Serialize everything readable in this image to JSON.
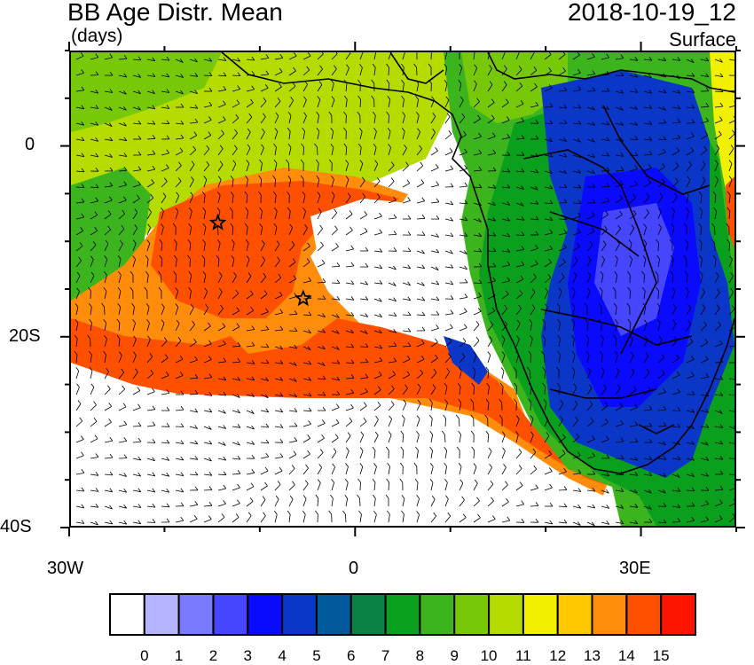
{
  "header": {
    "title": "BB Age Distr. Mean",
    "units": "(days)",
    "datetime": "2018-10-19_12",
    "level": "Surface"
  },
  "axes": {
    "y_labels": [
      "0",
      "20S",
      "40S"
    ],
    "x_labels": [
      "30W",
      "0",
      "30E"
    ]
  },
  "map": {
    "lon_range": [
      -30,
      40
    ],
    "lat_range": [
      -40,
      10
    ],
    "markers": [
      {
        "name": "star-1",
        "lon": -14.5,
        "lat": -8
      },
      {
        "name": "star-2",
        "lon": -5.5,
        "lat": -16
      }
    ]
  },
  "colorbar": {
    "labels": [
      "0",
      "1",
      "2",
      "3",
      "4",
      "5",
      "6",
      "7",
      "8",
      "9",
      "10",
      "11",
      "12",
      "13",
      "14",
      "15"
    ],
    "colors": [
      "#ffffff",
      "#b4b4ff",
      "#7a7aff",
      "#4646ff",
      "#0a0aff",
      "#0a37c8",
      "#005a9b",
      "#0a8246",
      "#0aa01e",
      "#3cb41e",
      "#78c80a",
      "#b4dc00",
      "#f0f000",
      "#ffc800",
      "#ff8c0a",
      "#ff5000",
      "#ff1400"
    ]
  }
}
